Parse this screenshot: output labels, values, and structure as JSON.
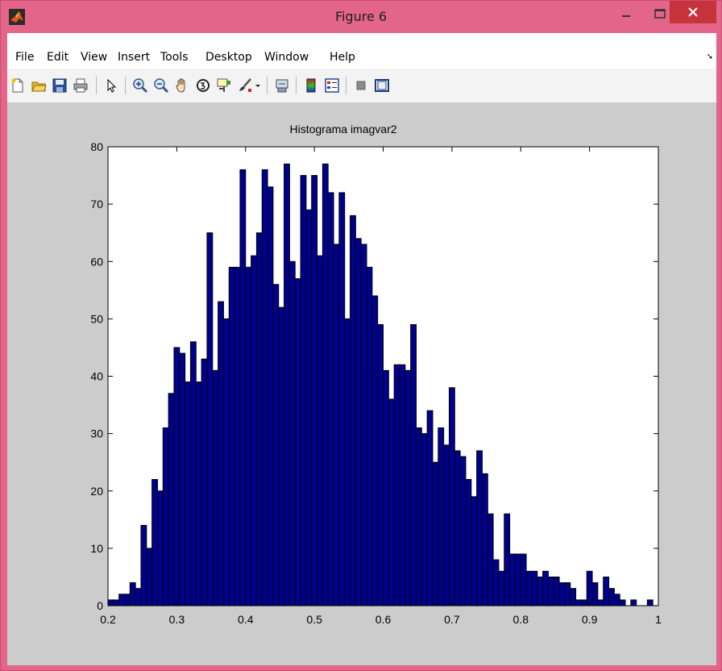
{
  "window": {
    "title": "Figure 6",
    "controls": {
      "minimize": "–",
      "maximize": "□",
      "close": "✕"
    }
  },
  "menu": {
    "items": [
      "File",
      "Edit",
      "View",
      "Insert",
      "Tools",
      "Desktop",
      "Window",
      "Help"
    ],
    "dock_glyph": "➘"
  },
  "toolbar": {
    "buttons": [
      {
        "name": "new-figure-icon"
      },
      {
        "name": "open-file-icon"
      },
      {
        "name": "save-icon"
      },
      {
        "name": "print-icon"
      },
      {
        "name": "edit-plot-arrow-icon"
      },
      {
        "name": "zoom-in-icon"
      },
      {
        "name": "zoom-out-icon"
      },
      {
        "name": "pan-hand-icon"
      },
      {
        "name": "rotate-3d-icon"
      },
      {
        "name": "data-cursor-icon"
      },
      {
        "name": "brush-icon"
      },
      {
        "name": "link-plot-icon"
      },
      {
        "name": "insert-colorbar-icon"
      },
      {
        "name": "insert-legend-icon"
      },
      {
        "name": "hide-plot-tools-icon"
      },
      {
        "name": "show-plot-tools-icon"
      }
    ]
  },
  "colors": {
    "titlebar": "#e3658a",
    "close_button": "#c7333b",
    "figure_bg": "#cccccc",
    "bar_fill": "#00008f",
    "bar_edge": "#000000"
  },
  "chart_data": {
    "type": "bar",
    "title": "Histograma imagvar2",
    "xlabel": "",
    "ylabel": "",
    "xlim": [
      0.2,
      1.0
    ],
    "ylim": [
      0,
      80
    ],
    "xticks": [
      "0.2",
      "0.3",
      "0.4",
      "0.5",
      "0.6",
      "0.7",
      "0.8",
      "0.9",
      "1"
    ],
    "yticks": [
      "0",
      "10",
      "20",
      "30",
      "40",
      "50",
      "60",
      "70",
      "80"
    ],
    "bin_start": 0.2,
    "bin_width": 0.008,
    "values": [
      1,
      1,
      2,
      2,
      4,
      3,
      14,
      10,
      22,
      20,
      31,
      37,
      45,
      44,
      39,
      46,
      39,
      43,
      65,
      41,
      53,
      50,
      59,
      59,
      76,
      59,
      61,
      65,
      76,
      73,
      56,
      52,
      77,
      60,
      57,
      75,
      69,
      75,
      61,
      77,
      72,
      63,
      72,
      50,
      68,
      64,
      63,
      59,
      54,
      49,
      41,
      36,
      42,
      42,
      41,
      49,
      31,
      30,
      34,
      25,
      31,
      28,
      38,
      27,
      26,
      22,
      19,
      27,
      23,
      16,
      8,
      6,
      16,
      9,
      9,
      9,
      6,
      6,
      5,
      6,
      5,
      5,
      4,
      4,
      3,
      1,
      1,
      6,
      4,
      1,
      5,
      3,
      2,
      1,
      0,
      1,
      0,
      0,
      1,
      0
    ]
  }
}
